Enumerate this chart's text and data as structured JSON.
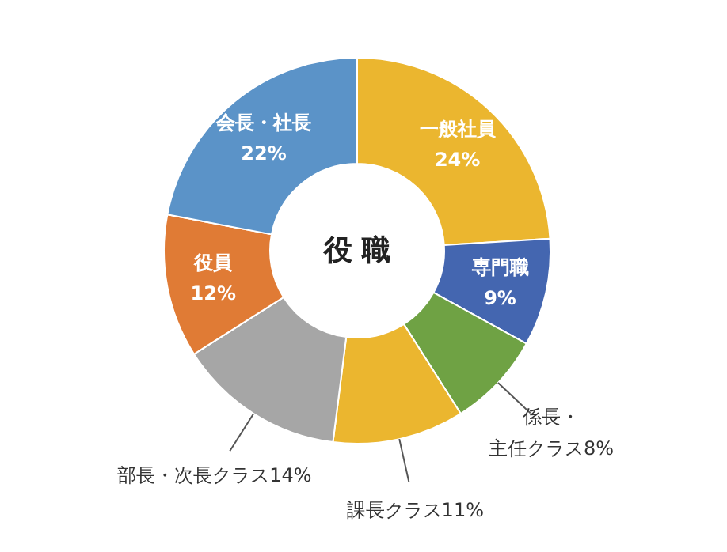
{
  "chart_data": {
    "type": "donut",
    "title": "役 職",
    "categories": [
      "一般社員",
      "専門職",
      "係長・主任クラス",
      "課長クラス",
      "部長・次長クラス",
      "役員",
      "会長・社長"
    ],
    "values": [
      24,
      9,
      8,
      11,
      14,
      12,
      22
    ],
    "value_labels": [
      "24%",
      "9%",
      "8%",
      "11%",
      "14%",
      "12%",
      "22%"
    ],
    "colors": [
      "#ebb62f",
      "#4466b0",
      "#6fa244",
      "#ebb62f",
      "#a6a6a6",
      "#e07b35",
      "#5b93c8"
    ]
  }
}
